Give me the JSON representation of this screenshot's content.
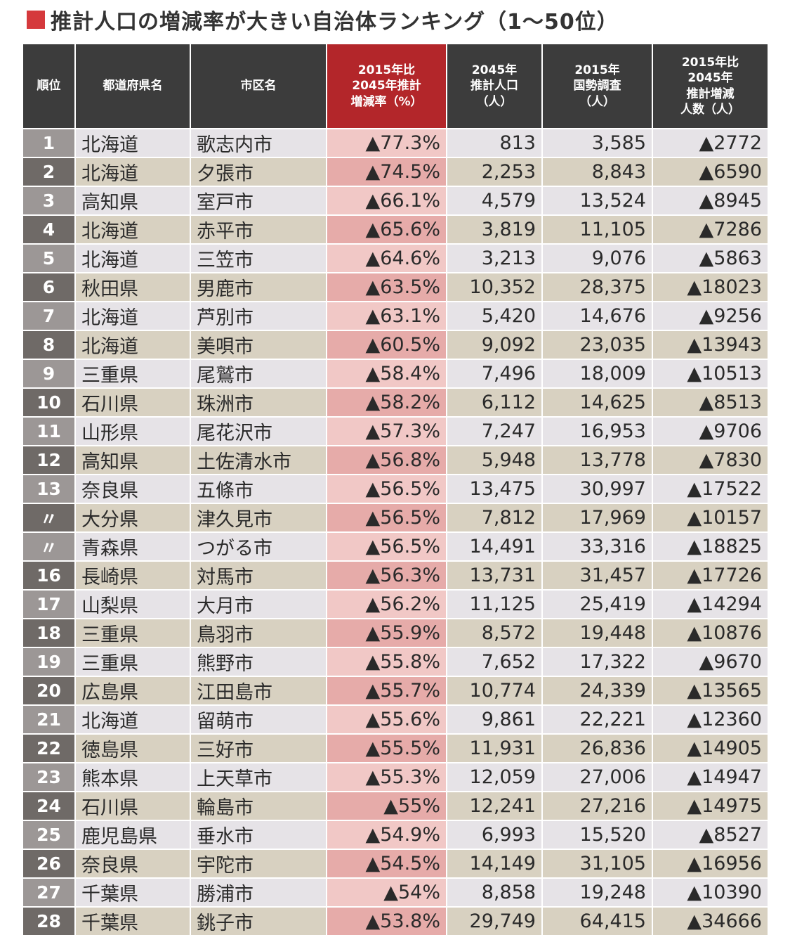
{
  "title": "推計人口の増減率が大きい自治体ランキング（1〜50位）",
  "colors": {
    "header": "#3c3c3c",
    "header_highlight": "#b3262a",
    "title_marker": "#d5393c"
  },
  "chart_data": {
    "type": "table",
    "columns": [
      "順位",
      "都道府県名",
      "市区名",
      "2015年比\n2045年推計\n増減率（%）",
      "2045年\n推計人口\n（人）",
      "2015年\n国勢調査\n（人）",
      "2015年比\n2045年\n推計増減\n人数（人）"
    ],
    "rows": [
      [
        "1",
        "北海道",
        "歌志内市",
        "▲77.3%",
        "813",
        "3,585",
        "▲2772"
      ],
      [
        "2",
        "北海道",
        "夕張市",
        "▲74.5%",
        "2,253",
        "8,843",
        "▲6590"
      ],
      [
        "3",
        "高知県",
        "室戸市",
        "▲66.1%",
        "4,579",
        "13,524",
        "▲8945"
      ],
      [
        "4",
        "北海道",
        "赤平市",
        "▲65.6%",
        "3,819",
        "11,105",
        "▲7286"
      ],
      [
        "5",
        "北海道",
        "三笠市",
        "▲64.6%",
        "3,213",
        "9,076",
        "▲5863"
      ],
      [
        "6",
        "秋田県",
        "男鹿市",
        "▲63.5%",
        "10,352",
        "28,375",
        "▲18023"
      ],
      [
        "7",
        "北海道",
        "芦別市",
        "▲63.1%",
        "5,420",
        "14,676",
        "▲9256"
      ],
      [
        "8",
        "北海道",
        "美唄市",
        "▲60.5%",
        "9,092",
        "23,035",
        "▲13943"
      ],
      [
        "9",
        "三重県",
        "尾鷲市",
        "▲58.4%",
        "7,496",
        "18,009",
        "▲10513"
      ],
      [
        "10",
        "石川県",
        "珠洲市",
        "▲58.2%",
        "6,112",
        "14,625",
        "▲8513"
      ],
      [
        "11",
        "山形県",
        "尾花沢市",
        "▲57.3%",
        "7,247",
        "16,953",
        "▲9706"
      ],
      [
        "12",
        "高知県",
        "土佐清水市",
        "▲56.8%",
        "5,948",
        "13,778",
        "▲7830"
      ],
      [
        "13",
        "奈良県",
        "五條市",
        "▲56.5%",
        "13,475",
        "30,997",
        "▲17522"
      ],
      [
        "〃",
        "大分県",
        "津久見市",
        "▲56.5%",
        "7,812",
        "17,969",
        "▲10157"
      ],
      [
        "〃",
        "青森県",
        "つがる市",
        "▲56.5%",
        "14,491",
        "33,316",
        "▲18825"
      ],
      [
        "16",
        "長崎県",
        "対馬市",
        "▲56.3%",
        "13,731",
        "31,457",
        "▲17726"
      ],
      [
        "17",
        "山梨県",
        "大月市",
        "▲56.2%",
        "11,125",
        "25,419",
        "▲14294"
      ],
      [
        "18",
        "三重県",
        "鳥羽市",
        "▲55.9%",
        "8,572",
        "19,448",
        "▲10876"
      ],
      [
        "19",
        "三重県",
        "熊野市",
        "▲55.8%",
        "7,652",
        "17,322",
        "▲9670"
      ],
      [
        "20",
        "広島県",
        "江田島市",
        "▲55.7%",
        "10,774",
        "24,339",
        "▲13565"
      ],
      [
        "21",
        "北海道",
        "留萌市",
        "▲55.6%",
        "9,861",
        "22,221",
        "▲12360"
      ],
      [
        "22",
        "徳島県",
        "三好市",
        "▲55.5%",
        "11,931",
        "26,836",
        "▲14905"
      ],
      [
        "23",
        "熊本県",
        "上天草市",
        "▲55.3%",
        "12,059",
        "27,006",
        "▲14947"
      ],
      [
        "24",
        "石川県",
        "輪島市",
        "▲55%",
        "12,241",
        "27,216",
        "▲14975"
      ],
      [
        "25",
        "鹿児島県",
        "垂水市",
        "▲54.9%",
        "6,993",
        "15,520",
        "▲8527"
      ],
      [
        "26",
        "奈良県",
        "宇陀市",
        "▲54.5%",
        "14,149",
        "31,105",
        "▲16956"
      ],
      [
        "27",
        "千葉県",
        "勝浦市",
        "▲54%",
        "8,858",
        "19,248",
        "▲10390"
      ],
      [
        "28",
        "千葉県",
        "銚子市",
        "▲53.8%",
        "29,749",
        "64,415",
        "▲34666"
      ]
    ]
  }
}
